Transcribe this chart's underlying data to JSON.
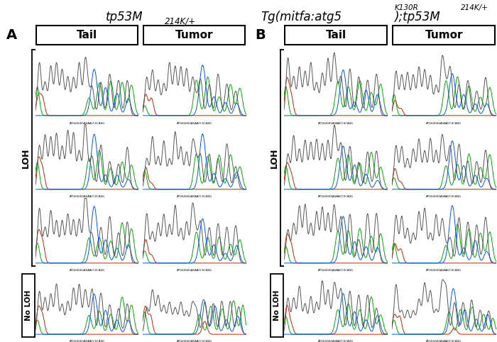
{
  "bg_color": "#ffffff",
  "title_left_italic": "tp53M",
  "title_left_sub": "214K/+",
  "title_right_italic": "Tg(mitfa:atg5",
  "title_right_sup": "K130R",
  "title_right2_italic": ");tp53M",
  "title_right2_sup": "214K/+",
  "label_A": "A",
  "label_B": "B",
  "col_headers": [
    "Tail",
    "Tumor"
  ],
  "loh_label": "LOH",
  "noloh_label": "No LOH",
  "seq_text": "ATGGGGGGAGAACCGCAGG",
  "n_loh_rows": 3,
  "gray_color": "#555555",
  "green_color": "#00aa00",
  "blue_color": "#0055ff",
  "red_color": "#cc2200"
}
